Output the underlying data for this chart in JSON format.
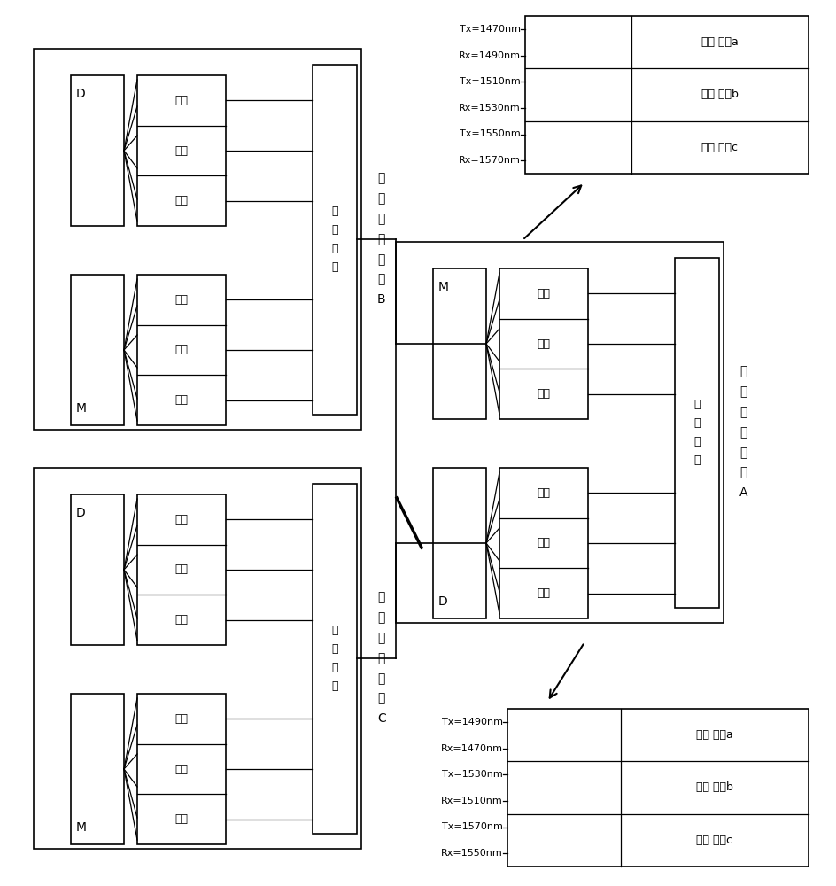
{
  "bg_color": "#ffffff",
  "lw": 1.2,
  "lw_t": 0.9,
  "fs_port": 9,
  "fs_chip": 9,
  "fs_label": 10,
  "fs_wave": 8,
  "fs_service": 9,
  "port_label": "光口",
  "chip_label": "交换芯片",
  "switch_B_label": "多波长交换机B",
  "switch_C_label": "多波长交换机C",
  "switch_A_label": "多波长交换机A",
  "wave_top_left": [
    "Tx=1470nm",
    "Rx=1490nm",
    "Tx=1510nm",
    "Rx=1530nm",
    "Tx=1550nm",
    "Rx=1570nm"
  ],
  "wave_top_right": [
    "光口 业务a",
    "光口 业务b",
    "光口 业务c"
  ],
  "wave_bot_left": [
    "Tx=1490nm",
    "Rx=1470nm",
    "Tx=1530nm",
    "Rx=1510nm",
    "Tx=1570nm",
    "Rx=1550nm"
  ],
  "wave_bot_right": [
    "光口 业务a",
    "光口 业务b",
    "光口 业务c"
  ]
}
